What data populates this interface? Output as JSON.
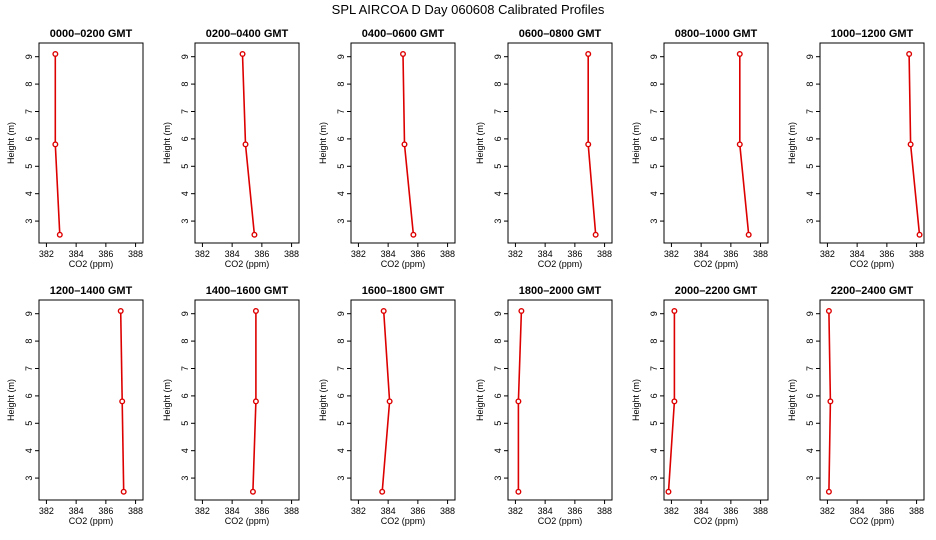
{
  "figure": {
    "title": "SPL AIRCOA D  Day 060608  Calibrated Profiles"
  },
  "chart_data": [
    {
      "type": "line",
      "title": "0000–0200 GMT",
      "xlabel": "CO2 (ppm)",
      "ylabel": "Height (m)",
      "xlim": [
        381.5,
        388.5
      ],
      "ylim": [
        2.2,
        9.5
      ],
      "xticks": [
        382,
        384,
        386,
        388
      ],
      "yticks": [
        3,
        4,
        5,
        6,
        7,
        8,
        9
      ],
      "series": [
        {
          "x": [
            382.9,
            382.6,
            382.6
          ],
          "y": [
            2.5,
            5.8,
            9.1
          ],
          "color": "#dd0000"
        }
      ]
    },
    {
      "type": "line",
      "title": "0200–0400 GMT",
      "xlabel": "CO2 (ppm)",
      "ylabel": "Height (m)",
      "xlim": [
        381.5,
        388.5
      ],
      "ylim": [
        2.2,
        9.5
      ],
      "xticks": [
        382,
        384,
        386,
        388
      ],
      "yticks": [
        3,
        4,
        5,
        6,
        7,
        8,
        9
      ],
      "series": [
        {
          "x": [
            385.5,
            384.9,
            384.7
          ],
          "y": [
            2.5,
            5.8,
            9.1
          ],
          "color": "#dd0000"
        }
      ]
    },
    {
      "type": "line",
      "title": "0400–0600 GMT",
      "xlabel": "CO2 (ppm)",
      "ylabel": "Height (m)",
      "xlim": [
        381.5,
        388.5
      ],
      "ylim": [
        2.2,
        9.5
      ],
      "xticks": [
        382,
        384,
        386,
        388
      ],
      "yticks": [
        3,
        4,
        5,
        6,
        7,
        8,
        9
      ],
      "series": [
        {
          "x": [
            385.7,
            385.1,
            385.0
          ],
          "y": [
            2.5,
            5.8,
            9.1
          ],
          "color": "#dd0000"
        }
      ]
    },
    {
      "type": "line",
      "title": "0600–0800 GMT",
      "xlabel": "CO2 (ppm)",
      "ylabel": "Height (m)",
      "xlim": [
        381.5,
        388.5
      ],
      "ylim": [
        2.2,
        9.5
      ],
      "xticks": [
        382,
        384,
        386,
        388
      ],
      "yticks": [
        3,
        4,
        5,
        6,
        7,
        8,
        9
      ],
      "series": [
        {
          "x": [
            387.4,
            386.9,
            386.9
          ],
          "y": [
            2.5,
            5.8,
            9.1
          ],
          "color": "#dd0000"
        }
      ]
    },
    {
      "type": "line",
      "title": "0800–1000 GMT",
      "xlabel": "CO2 (ppm)",
      "ylabel": "Height (m)",
      "xlim": [
        381.5,
        388.5
      ],
      "ylim": [
        2.2,
        9.5
      ],
      "xticks": [
        382,
        384,
        386,
        388
      ],
      "yticks": [
        3,
        4,
        5,
        6,
        7,
        8,
        9
      ],
      "series": [
        {
          "x": [
            387.2,
            386.6,
            386.6
          ],
          "y": [
            2.5,
            5.8,
            9.1
          ],
          "color": "#dd0000"
        }
      ]
    },
    {
      "type": "line",
      "title": "1000–1200 GMT",
      "xlabel": "CO2 (ppm)",
      "ylabel": "Height (m)",
      "xlim": [
        381.5,
        388.5
      ],
      "ylim": [
        2.2,
        9.5
      ],
      "xticks": [
        382,
        384,
        386,
        388
      ],
      "yticks": [
        3,
        4,
        5,
        6,
        7,
        8,
        9
      ],
      "series": [
        {
          "x": [
            388.2,
            387.6,
            387.5
          ],
          "y": [
            2.5,
            5.8,
            9.1
          ],
          "color": "#dd0000"
        }
      ]
    },
    {
      "type": "line",
      "title": "1200–1400 GMT",
      "xlabel": "CO2 (ppm)",
      "ylabel": "Height (m)",
      "xlim": [
        381.5,
        388.5
      ],
      "ylim": [
        2.2,
        9.5
      ],
      "xticks": [
        382,
        384,
        386,
        388
      ],
      "yticks": [
        3,
        4,
        5,
        6,
        7,
        8,
        9
      ],
      "series": [
        {
          "x": [
            387.2,
            387.1,
            387.0
          ],
          "y": [
            2.5,
            5.8,
            9.1
          ],
          "color": "#dd0000"
        }
      ]
    },
    {
      "type": "line",
      "title": "1400–1600 GMT",
      "xlabel": "CO2 (ppm)",
      "ylabel": "Height (m)",
      "xlim": [
        381.5,
        388.5
      ],
      "ylim": [
        2.2,
        9.5
      ],
      "xticks": [
        382,
        384,
        386,
        388
      ],
      "yticks": [
        3,
        4,
        5,
        6,
        7,
        8,
        9
      ],
      "series": [
        {
          "x": [
            385.4,
            385.6,
            385.6
          ],
          "y": [
            2.5,
            5.8,
            9.1
          ],
          "color": "#dd0000"
        }
      ]
    },
    {
      "type": "line",
      "title": "1600–1800 GMT",
      "xlabel": "CO2 (ppm)",
      "ylabel": "Height (m)",
      "xlim": [
        381.5,
        388.5
      ],
      "ylim": [
        2.2,
        9.5
      ],
      "xticks": [
        382,
        384,
        386,
        388
      ],
      "yticks": [
        3,
        4,
        5,
        6,
        7,
        8,
        9
      ],
      "series": [
        {
          "x": [
            383.6,
            384.1,
            383.7
          ],
          "y": [
            2.5,
            5.8,
            9.1
          ],
          "color": "#dd0000"
        }
      ]
    },
    {
      "type": "line",
      "title": "1800–2000 GMT",
      "xlabel": "CO2 (ppm)",
      "ylabel": "Height (m)",
      "xlim": [
        381.5,
        388.5
      ],
      "ylim": [
        2.2,
        9.5
      ],
      "xticks": [
        382,
        384,
        386,
        388
      ],
      "yticks": [
        3,
        4,
        5,
        6,
        7,
        8,
        9
      ],
      "series": [
        {
          "x": [
            382.2,
            382.2,
            382.4
          ],
          "y": [
            2.5,
            5.8,
            9.1
          ],
          "color": "#dd0000"
        }
      ]
    },
    {
      "type": "line",
      "title": "2000–2200 GMT",
      "xlabel": "CO2 (ppm)",
      "ylabel": "Height (m)",
      "xlim": [
        381.5,
        388.5
      ],
      "ylim": [
        2.2,
        9.5
      ],
      "xticks": [
        382,
        384,
        386,
        388
      ],
      "yticks": [
        3,
        4,
        5,
        6,
        7,
        8,
        9
      ],
      "series": [
        {
          "x": [
            381.8,
            382.2,
            382.2
          ],
          "y": [
            2.5,
            5.8,
            9.1
          ],
          "color": "#dd0000"
        }
      ]
    },
    {
      "type": "line",
      "title": "2200–2400 GMT",
      "xlabel": "CO2 (ppm)",
      "ylabel": "Height (m)",
      "xlim": [
        381.5,
        388.5
      ],
      "ylim": [
        2.2,
        9.5
      ],
      "xticks": [
        382,
        384,
        386,
        388
      ],
      "yticks": [
        3,
        4,
        5,
        6,
        7,
        8,
        9
      ],
      "series": [
        {
          "x": [
            382.1,
            382.2,
            382.1
          ],
          "y": [
            2.5,
            5.8,
            9.1
          ],
          "color": "#dd0000"
        }
      ]
    }
  ]
}
